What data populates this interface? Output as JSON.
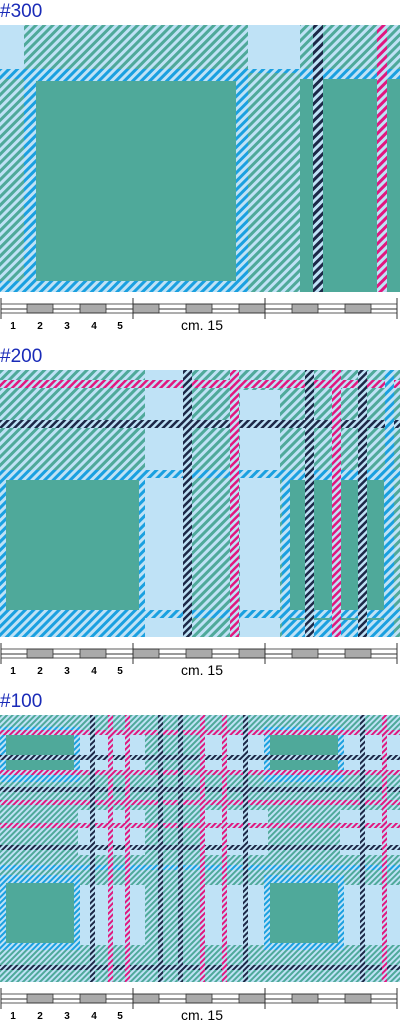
{
  "sections": [
    {
      "label": "#300",
      "ruler": {
        "digits": [
          "1",
          "2",
          "3",
          "4",
          "5"
        ],
        "caption": "cm. 15"
      }
    },
    {
      "label": "#200",
      "ruler": {
        "digits": [
          "1",
          "2",
          "3",
          "4",
          "5"
        ],
        "caption": "cm. 15"
      }
    },
    {
      "label": "#100",
      "ruler": {
        "digits": [
          "1",
          "2",
          "3",
          "4",
          "5"
        ],
        "caption": "cm. 15"
      }
    }
  ],
  "colors": {
    "teal": "#4fa99a",
    "light_blue": "#bfe2f6",
    "blue": "#1aa0e0",
    "navy": "#1c2847",
    "magenta": "#e0187f",
    "label_blue": "#1a2bb8"
  }
}
